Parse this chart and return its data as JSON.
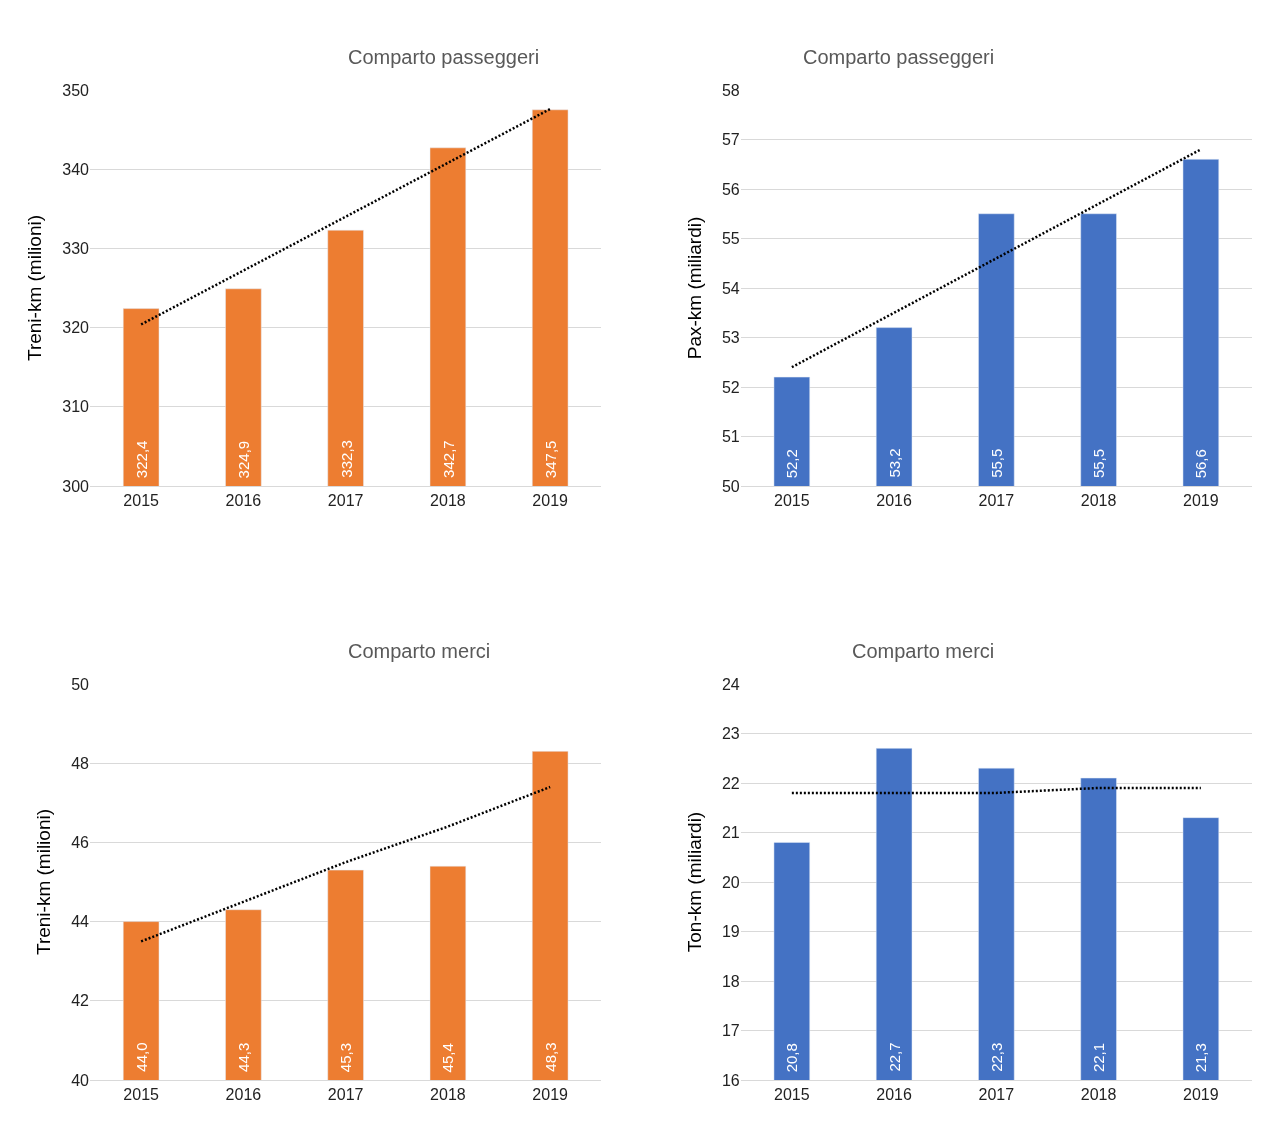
{
  "chart_data": [
    {
      "type": "bar",
      "title": "Comparto passeggeri",
      "ylabel": "Treni-km (milioni)",
      "categories": [
        "2015",
        "2016",
        "2017",
        "2018",
        "2019"
      ],
      "ylim": [
        300,
        350
      ],
      "yticks": [
        300,
        310,
        320,
        330,
        340,
        350
      ],
      "grid": "y",
      "series": [
        {
          "color": "#ed7d31",
          "values": [
            322.4,
            324.9,
            332.3,
            342.7,
            347.5
          ],
          "value_labels": [
            "322,4",
            "324,9",
            "332,3",
            "342,7",
            "347,5"
          ]
        },
        {
          "type": "line",
          "values": [
            320.4,
            327.2,
            334.0,
            340.8,
            347.6
          ],
          "color": "#000000",
          "line_style": "dotted"
        }
      ]
    },
    {
      "type": "bar",
      "title": "Comparto passeggeri",
      "ylabel": "Pax-km (miliardi)",
      "categories": [
        "2015",
        "2016",
        "2017",
        "2018",
        "2019"
      ],
      "ylim": [
        50,
        58
      ],
      "yticks": [
        50,
        51,
        52,
        53,
        54,
        55,
        56,
        57,
        58
      ],
      "grid": "y",
      "series": [
        {
          "color": "#4472c4",
          "values": [
            52.2,
            53.2,
            55.5,
            55.5,
            56.6
          ],
          "value_labels": [
            "52,2",
            "53,2",
            "55,5",
            "55,5",
            "56,6"
          ]
        },
        {
          "type": "line",
          "values": [
            52.4,
            53.5,
            54.6,
            55.7,
            56.8
          ],
          "color": "#000000",
          "line_style": "dotted"
        }
      ]
    },
    {
      "type": "bar",
      "title": "Comparto merci",
      "ylabel": "Treni-km (milioni)",
      "categories": [
        "2015",
        "2016",
        "2017",
        "2018",
        "2019"
      ],
      "ylim": [
        40,
        50
      ],
      "yticks": [
        40,
        42,
        44,
        46,
        48,
        50
      ],
      "grid": "y",
      "series": [
        {
          "color": "#ed7d31",
          "values": [
            44.0,
            44.3,
            45.3,
            45.4,
            48.3
          ],
          "value_labels": [
            "44,0",
            "44,3",
            "45,3",
            "45,4",
            "48,3"
          ]
        },
        {
          "type": "line",
          "values": [
            43.5,
            44.5,
            45.5,
            46.4,
            47.4
          ],
          "color": "#000000",
          "line_style": "dotted"
        }
      ]
    },
    {
      "type": "bar",
      "title": "Comparto merci",
      "ylabel": "Ton-km (miliardi)",
      "categories": [
        "2015",
        "2016",
        "2017",
        "2018",
        "2019"
      ],
      "ylim": [
        16,
        24
      ],
      "yticks": [
        16,
        17,
        18,
        19,
        20,
        21,
        22,
        23,
        24
      ],
      "grid": "y",
      "series": [
        {
          "color": "#4472c4",
          "values": [
            20.8,
            22.7,
            22.3,
            22.1,
            21.3
          ],
          "value_labels": [
            "20,8",
            "22,7",
            "22,3",
            "22,1",
            "21,3"
          ]
        },
        {
          "type": "line",
          "values": [
            21.8,
            21.8,
            21.8,
            21.9,
            21.9
          ],
          "color": "#000000",
          "line_style": "dotted"
        }
      ]
    }
  ]
}
